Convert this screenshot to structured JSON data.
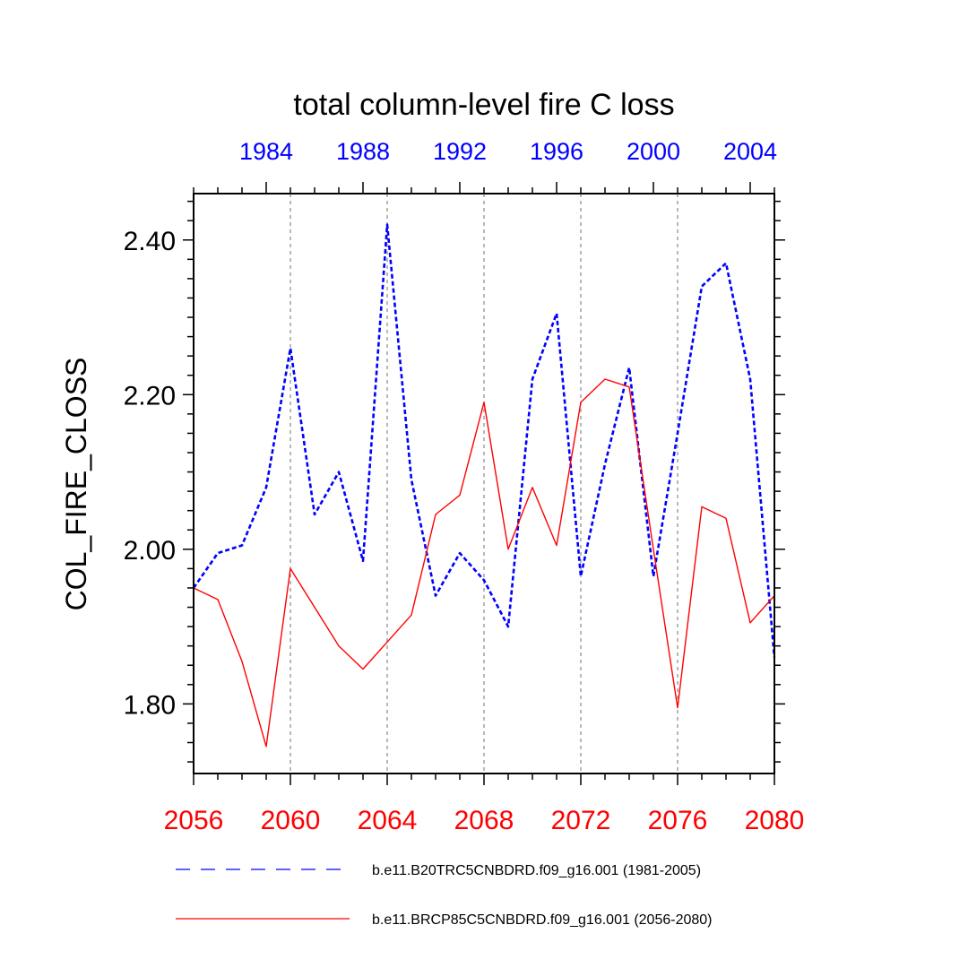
{
  "chart_data": {
    "type": "line",
    "title": "total column-level fire C loss",
    "ylabel": "COL_FIRE_CLOSS",
    "xlabel": "",
    "ylim": [
      1.71,
      2.46
    ],
    "xlim": [
      2056,
      2080
    ],
    "x_bottom": [
      2056,
      2057,
      2058,
      2059,
      2060,
      2061,
      2062,
      2063,
      2064,
      2065,
      2066,
      2067,
      2068,
      2069,
      2070,
      2071,
      2072,
      2073,
      2074,
      2075,
      2076,
      2077,
      2078,
      2079,
      2080
    ],
    "x_top_range": [
      1981,
      2005
    ],
    "y_ticks_major": [
      1.8,
      2.0,
      2.2,
      2.4
    ],
    "y_tick_labels": [
      "1.80",
      "2.00",
      "2.20",
      "2.40"
    ],
    "x_bottom_ticks": [
      2056,
      2060,
      2064,
      2068,
      2072,
      2076,
      2080
    ],
    "x_bottom_tick_labels": [
      "2056",
      "2060",
      "2064",
      "2068",
      "2072",
      "2076",
      "2080"
    ],
    "x_top_ticks": [
      1984,
      1988,
      1992,
      1996,
      2000,
      2004
    ],
    "x_top_tick_labels": [
      "1984",
      "1988",
      "1992",
      "1996",
      "2000",
      "2004"
    ],
    "vertical_gridlines_at": [
      2060,
      2064,
      2068,
      2072,
      2076
    ],
    "series": [
      {
        "name": "b.e11.B20TRC5CNBDRD.f09_g16.001 (1981-2005)",
        "axis": "top",
        "color": "#0000ff",
        "style": "dashed",
        "values": [
          1.95,
          1.995,
          2.005,
          2.08,
          2.26,
          2.045,
          2.1,
          1.985,
          2.42,
          2.09,
          1.94,
          1.995,
          1.96,
          1.9,
          2.22,
          2.305,
          1.965,
          2.11,
          2.235,
          1.965,
          2.15,
          2.34,
          2.37,
          2.22,
          1.86
        ]
      },
      {
        "name": "b.e11.BRCP85C5CNBDRD.f09_g16.001 (2056-2080)",
        "axis": "bottom",
        "color": "#ff0000",
        "style": "solid",
        "values": [
          1.95,
          1.935,
          1.855,
          1.745,
          1.975,
          1.925,
          1.875,
          1.845,
          1.88,
          1.915,
          2.045,
          2.07,
          2.19,
          2.0,
          2.08,
          2.005,
          2.19,
          2.22,
          2.21,
          2.0,
          1.795,
          2.055,
          2.04,
          1.905,
          1.94
        ]
      }
    ],
    "legend_position": "bottom"
  }
}
